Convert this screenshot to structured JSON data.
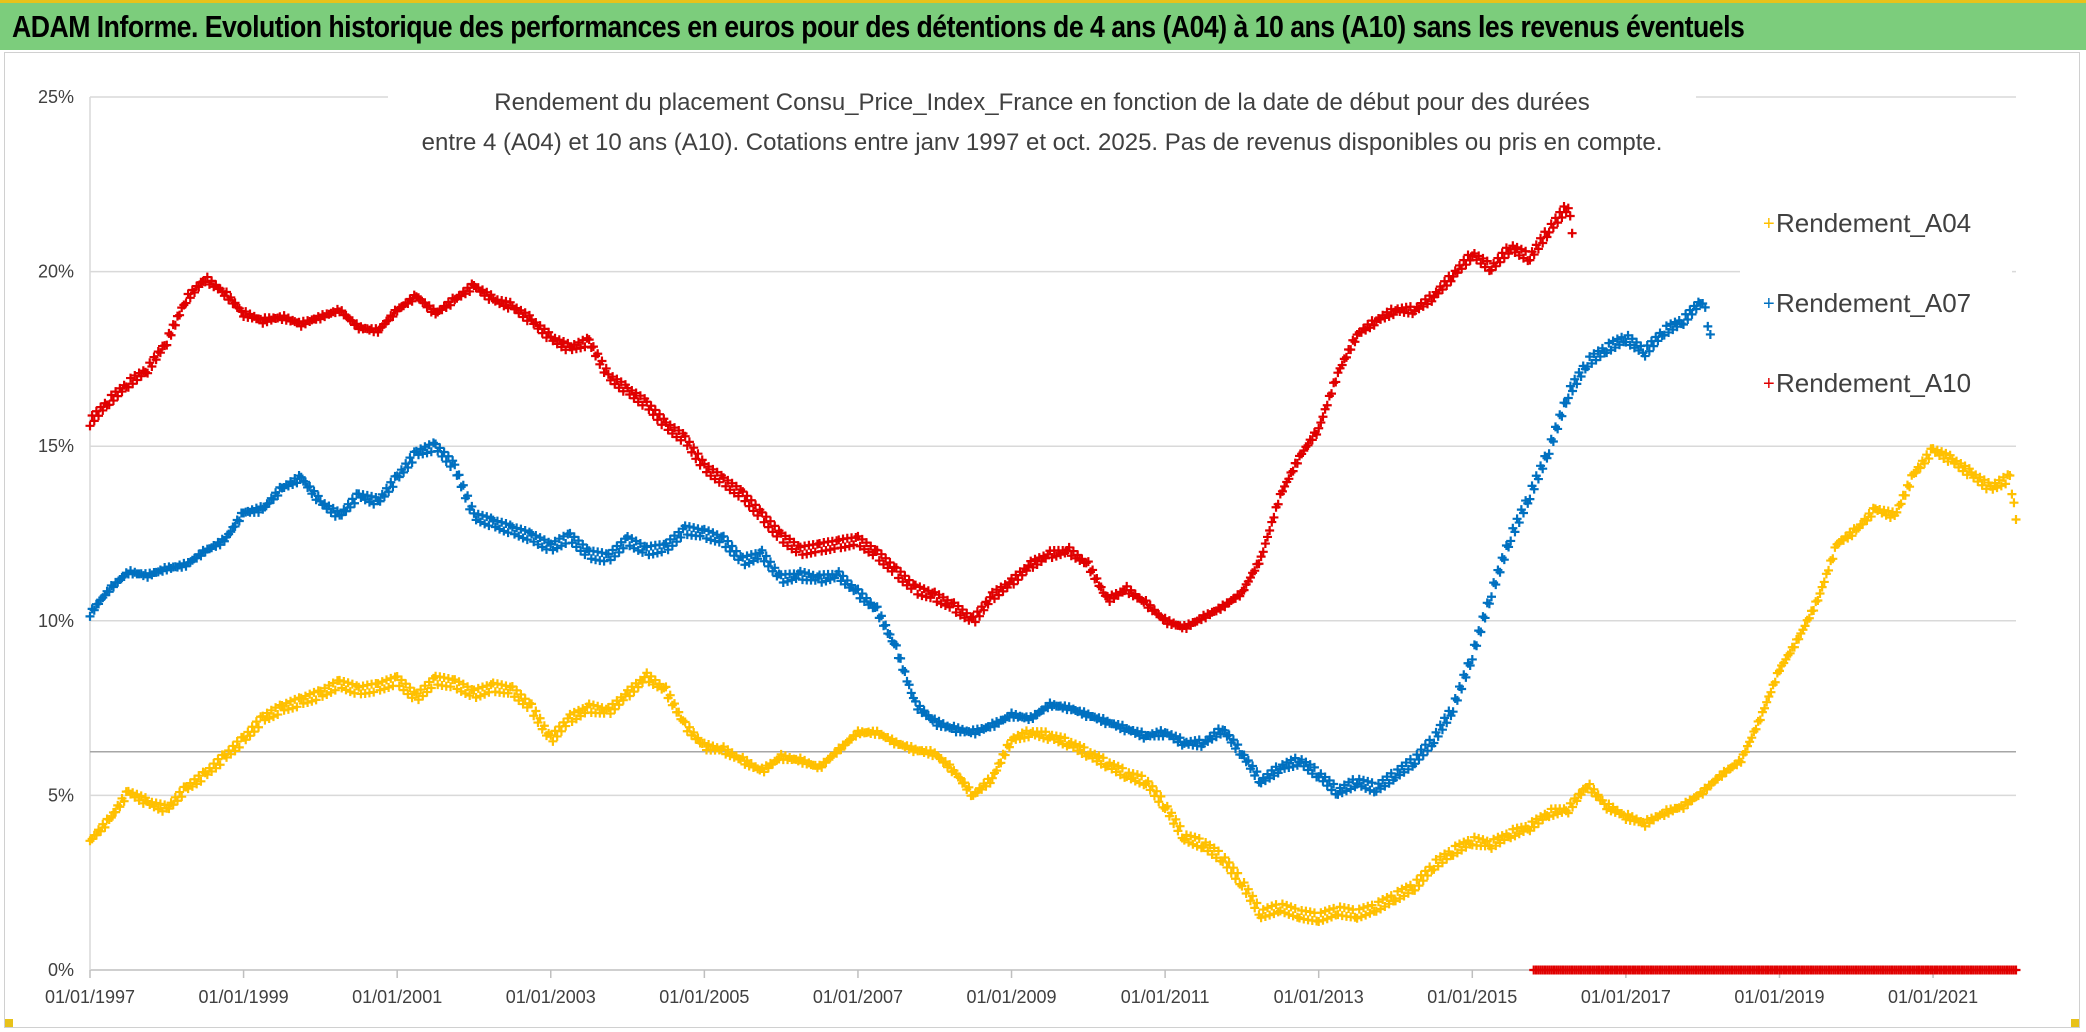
{
  "banner": {
    "title": "ADAM Informe. Evolution historique des performances en euros pour des détentions de 4 ans (A04) à 10 ans (A10) sans les revenus éventuels",
    "color": "#7ccd7c"
  },
  "chart_data": {
    "type": "scatter",
    "title_line1": "Rendement du placement Consu_Price_Index_France en fonction de la date de début pour des durées",
    "title_line2": "entre 4 (A04) et 10 ans (A10). Cotations entre janv 1997 et oct. 2025. Pas de revenus disponibles ou pris en compte.",
    "x_tick_labels": [
      "01/01/1997",
      "01/01/1999",
      "01/01/2001",
      "01/01/2003",
      "01/01/2005",
      "01/01/2007",
      "01/01/2009",
      "01/01/2011",
      "01/01/2013",
      "01/01/2015",
      "01/01/2017",
      "01/01/2019",
      "01/01/2021"
    ],
    "x_tick_years": [
      1997,
      1999,
      2001,
      2003,
      2005,
      2007,
      2009,
      2011,
      2013,
      2015,
      2017,
      2019,
      2021
    ],
    "xlim": [
      1997.0,
      2022.08
    ],
    "y_tick_labels": [
      "0%",
      "5%",
      "10%",
      "15%",
      "20%",
      "25%"
    ],
    "y_tick_values": [
      0,
      5,
      10,
      15,
      20,
      25
    ],
    "ylim": [
      0,
      25
    ],
    "reference_line": 6.25,
    "marker": "+",
    "legend_position": "right",
    "series": [
      {
        "name": "Rendement_A04",
        "color": "#ffc000",
        "points": [
          [
            1997.0,
            3.7
          ],
          [
            1997.25,
            4.3
          ],
          [
            1997.5,
            5.1
          ],
          [
            1997.75,
            4.8
          ],
          [
            1998.0,
            4.6
          ],
          [
            1998.25,
            5.2
          ],
          [
            1998.5,
            5.6
          ],
          [
            1998.75,
            6.1
          ],
          [
            1999.0,
            6.6
          ],
          [
            1999.25,
            7.2
          ],
          [
            1999.5,
            7.5
          ],
          [
            1999.75,
            7.7
          ],
          [
            2000.0,
            7.9
          ],
          [
            2000.25,
            8.2
          ],
          [
            2000.5,
            8.0
          ],
          [
            2000.75,
            8.1
          ],
          [
            2001.0,
            8.3
          ],
          [
            2001.25,
            7.8
          ],
          [
            2001.5,
            8.3
          ],
          [
            2001.75,
            8.2
          ],
          [
            2002.0,
            7.9
          ],
          [
            2002.25,
            8.1
          ],
          [
            2002.5,
            8.0
          ],
          [
            2002.75,
            7.5
          ],
          [
            2003.0,
            6.6
          ],
          [
            2003.25,
            7.2
          ],
          [
            2003.5,
            7.5
          ],
          [
            2003.75,
            7.4
          ],
          [
            2004.0,
            7.9
          ],
          [
            2004.25,
            8.4
          ],
          [
            2004.5,
            8.0
          ],
          [
            2004.75,
            7.0
          ],
          [
            2005.0,
            6.4
          ],
          [
            2005.25,
            6.3
          ],
          [
            2005.5,
            6.0
          ],
          [
            2005.75,
            5.7
          ],
          [
            2006.0,
            6.1
          ],
          [
            2006.25,
            6.0
          ],
          [
            2006.5,
            5.8
          ],
          [
            2006.75,
            6.3
          ],
          [
            2007.0,
            6.8
          ],
          [
            2007.25,
            6.8
          ],
          [
            2007.5,
            6.5
          ],
          [
            2007.75,
            6.3
          ],
          [
            2008.0,
            6.2
          ],
          [
            2008.25,
            5.7
          ],
          [
            2008.5,
            5.0
          ],
          [
            2008.75,
            5.5
          ],
          [
            2009.0,
            6.6
          ],
          [
            2009.25,
            6.8
          ],
          [
            2009.5,
            6.7
          ],
          [
            2009.75,
            6.5
          ],
          [
            2010.0,
            6.2
          ],
          [
            2010.25,
            5.9
          ],
          [
            2010.5,
            5.6
          ],
          [
            2010.75,
            5.4
          ],
          [
            2011.0,
            4.7
          ],
          [
            2011.25,
            3.8
          ],
          [
            2011.5,
            3.6
          ],
          [
            2011.75,
            3.2
          ],
          [
            2012.0,
            2.5
          ],
          [
            2012.25,
            1.6
          ],
          [
            2012.5,
            1.8
          ],
          [
            2012.75,
            1.6
          ],
          [
            2013.0,
            1.5
          ],
          [
            2013.25,
            1.7
          ],
          [
            2013.5,
            1.6
          ],
          [
            2013.75,
            1.8
          ],
          [
            2014.0,
            2.1
          ],
          [
            2014.25,
            2.4
          ],
          [
            2014.5,
            3.0
          ],
          [
            2014.75,
            3.4
          ],
          [
            2015.0,
            3.7
          ],
          [
            2015.25,
            3.6
          ],
          [
            2015.5,
            3.9
          ],
          [
            2015.75,
            4.1
          ],
          [
            2016.0,
            4.5
          ],
          [
            2016.25,
            4.6
          ],
          [
            2016.5,
            5.3
          ],
          [
            2016.75,
            4.7
          ],
          [
            2017.0,
            4.4
          ],
          [
            2017.25,
            4.2
          ],
          [
            2017.5,
            4.5
          ],
          [
            2017.75,
            4.7
          ],
          [
            2018.0,
            5.1
          ],
          [
            2018.25,
            5.6
          ],
          [
            2018.5,
            6.0
          ],
          [
            2018.75,
            7.2
          ],
          [
            2019.0,
            8.6
          ],
          [
            2019.25,
            9.5
          ],
          [
            2019.5,
            10.6
          ],
          [
            2019.75,
            12.2
          ],
          [
            2020.0,
            12.6
          ],
          [
            2020.25,
            13.2
          ],
          [
            2020.5,
            13.0
          ],
          [
            2020.75,
            14.2
          ],
          [
            2021.0,
            14.9
          ],
          [
            2021.25,
            14.6
          ],
          [
            2021.5,
            14.2
          ],
          [
            2021.75,
            13.8
          ],
          [
            2022.0,
            14.1
          ],
          [
            2022.08,
            12.9
          ]
        ]
      },
      {
        "name": "Rendement_A07",
        "color": "#0070c0",
        "points": [
          [
            1997.0,
            10.2
          ],
          [
            1997.25,
            10.9
          ],
          [
            1997.5,
            11.4
          ],
          [
            1997.75,
            11.3
          ],
          [
            1998.0,
            11.5
          ],
          [
            1998.25,
            11.6
          ],
          [
            1998.5,
            12.0
          ],
          [
            1998.75,
            12.3
          ],
          [
            1999.0,
            13.1
          ],
          [
            1999.25,
            13.2
          ],
          [
            1999.5,
            13.8
          ],
          [
            1999.75,
            14.1
          ],
          [
            2000.0,
            13.4
          ],
          [
            2000.25,
            13.0
          ],
          [
            2000.5,
            13.6
          ],
          [
            2000.75,
            13.4
          ],
          [
            2001.0,
            14.1
          ],
          [
            2001.25,
            14.8
          ],
          [
            2001.5,
            15.0
          ],
          [
            2001.75,
            14.4
          ],
          [
            2002.0,
            13.0
          ],
          [
            2002.25,
            12.8
          ],
          [
            2002.5,
            12.6
          ],
          [
            2002.75,
            12.4
          ],
          [
            2003.0,
            12.1
          ],
          [
            2003.25,
            12.4
          ],
          [
            2003.5,
            11.9
          ],
          [
            2003.75,
            11.8
          ],
          [
            2004.0,
            12.3
          ],
          [
            2004.25,
            12.0
          ],
          [
            2004.5,
            12.1
          ],
          [
            2004.75,
            12.6
          ],
          [
            2005.0,
            12.5
          ],
          [
            2005.25,
            12.3
          ],
          [
            2005.5,
            11.7
          ],
          [
            2005.75,
            11.9
          ],
          [
            2006.0,
            11.2
          ],
          [
            2006.25,
            11.3
          ],
          [
            2006.5,
            11.2
          ],
          [
            2006.75,
            11.3
          ],
          [
            2007.0,
            10.8
          ],
          [
            2007.25,
            10.3
          ],
          [
            2007.5,
            9.2
          ],
          [
            2007.75,
            7.6
          ],
          [
            2008.0,
            7.1
          ],
          [
            2008.25,
            6.9
          ],
          [
            2008.5,
            6.8
          ],
          [
            2008.75,
            7.0
          ],
          [
            2009.0,
            7.3
          ],
          [
            2009.25,
            7.2
          ],
          [
            2009.5,
            7.6
          ],
          [
            2009.75,
            7.5
          ],
          [
            2010.0,
            7.3
          ],
          [
            2010.25,
            7.1
          ],
          [
            2010.5,
            6.9
          ],
          [
            2010.75,
            6.7
          ],
          [
            2011.0,
            6.8
          ],
          [
            2011.25,
            6.5
          ],
          [
            2011.5,
            6.5
          ],
          [
            2011.75,
            6.9
          ],
          [
            2012.0,
            6.2
          ],
          [
            2012.25,
            5.4
          ],
          [
            2012.5,
            5.8
          ],
          [
            2012.75,
            6.0
          ],
          [
            2013.0,
            5.6
          ],
          [
            2013.25,
            5.1
          ],
          [
            2013.5,
            5.4
          ],
          [
            2013.75,
            5.2
          ],
          [
            2014.0,
            5.6
          ],
          [
            2014.25,
            6.0
          ],
          [
            2014.5,
            6.6
          ],
          [
            2014.75,
            7.5
          ],
          [
            2015.0,
            9.0
          ],
          [
            2015.25,
            10.8
          ],
          [
            2015.5,
            12.4
          ],
          [
            2015.75,
            13.6
          ],
          [
            2016.0,
            14.9
          ],
          [
            2016.25,
            16.5
          ],
          [
            2016.5,
            17.4
          ],
          [
            2016.75,
            17.8
          ],
          [
            2017.0,
            18.1
          ],
          [
            2017.25,
            17.7
          ],
          [
            2017.5,
            18.3
          ],
          [
            2017.75,
            18.6
          ],
          [
            2018.0,
            19.2
          ],
          [
            2018.1,
            18.2
          ]
        ]
      },
      {
        "name": "Rendement_A10",
        "color": "#e00000",
        "points": [
          [
            1997.0,
            15.7
          ],
          [
            1997.25,
            16.3
          ],
          [
            1997.5,
            16.8
          ],
          [
            1997.75,
            17.2
          ],
          [
            1998.0,
            18.0
          ],
          [
            1998.25,
            19.2
          ],
          [
            1998.5,
            19.8
          ],
          [
            1998.75,
            19.4
          ],
          [
            1999.0,
            18.8
          ],
          [
            1999.25,
            18.6
          ],
          [
            1999.5,
            18.7
          ],
          [
            1999.75,
            18.5
          ],
          [
            2000.0,
            18.7
          ],
          [
            2000.25,
            18.9
          ],
          [
            2000.5,
            18.4
          ],
          [
            2000.75,
            18.3
          ],
          [
            2001.0,
            18.9
          ],
          [
            2001.25,
            19.3
          ],
          [
            2001.5,
            18.8
          ],
          [
            2001.75,
            19.2
          ],
          [
            2002.0,
            19.6
          ],
          [
            2002.25,
            19.2
          ],
          [
            2002.5,
            19.0
          ],
          [
            2002.75,
            18.6
          ],
          [
            2003.0,
            18.1
          ],
          [
            2003.25,
            17.8
          ],
          [
            2003.5,
            18.0
          ],
          [
            2003.75,
            17.0
          ],
          [
            2004.0,
            16.6
          ],
          [
            2004.25,
            16.2
          ],
          [
            2004.5,
            15.6
          ],
          [
            2004.75,
            15.2
          ],
          [
            2005.0,
            14.4
          ],
          [
            2005.25,
            14.0
          ],
          [
            2005.5,
            13.6
          ],
          [
            2005.75,
            13.0
          ],
          [
            2006.0,
            12.4
          ],
          [
            2006.25,
            12.0
          ],
          [
            2006.5,
            12.1
          ],
          [
            2006.75,
            12.2
          ],
          [
            2007.0,
            12.3
          ],
          [
            2007.25,
            11.9
          ],
          [
            2007.5,
            11.4
          ],
          [
            2007.75,
            10.9
          ],
          [
            2008.0,
            10.7
          ],
          [
            2008.25,
            10.4
          ],
          [
            2008.5,
            10.0
          ],
          [
            2008.75,
            10.7
          ],
          [
            2009.0,
            11.1
          ],
          [
            2009.25,
            11.6
          ],
          [
            2009.5,
            11.9
          ],
          [
            2009.75,
            12.0
          ],
          [
            2010.0,
            11.6
          ],
          [
            2010.25,
            10.6
          ],
          [
            2010.5,
            10.9
          ],
          [
            2010.75,
            10.5
          ],
          [
            2011.0,
            10.0
          ],
          [
            2011.25,
            9.8
          ],
          [
            2011.5,
            10.1
          ],
          [
            2011.75,
            10.4
          ],
          [
            2012.0,
            10.8
          ],
          [
            2012.25,
            11.8
          ],
          [
            2012.5,
            13.6
          ],
          [
            2012.75,
            14.7
          ],
          [
            2013.0,
            15.5
          ],
          [
            2013.25,
            17.1
          ],
          [
            2013.5,
            18.2
          ],
          [
            2013.75,
            18.6
          ],
          [
            2014.0,
            18.9
          ],
          [
            2014.25,
            18.9
          ],
          [
            2014.5,
            19.3
          ],
          [
            2014.75,
            19.9
          ],
          [
            2015.0,
            20.5
          ],
          [
            2015.25,
            20.1
          ],
          [
            2015.5,
            20.7
          ],
          [
            2015.75,
            20.4
          ],
          [
            2016.0,
            21.2
          ],
          [
            2016.25,
            21.9
          ],
          [
            2016.3,
            21.1
          ]
        ]
      }
    ],
    "zero_series": {
      "name": "Rendement_A10",
      "color": "#e00000",
      "x_start": 2015.8,
      "x_end": 2022.08,
      "value": 0
    }
  }
}
